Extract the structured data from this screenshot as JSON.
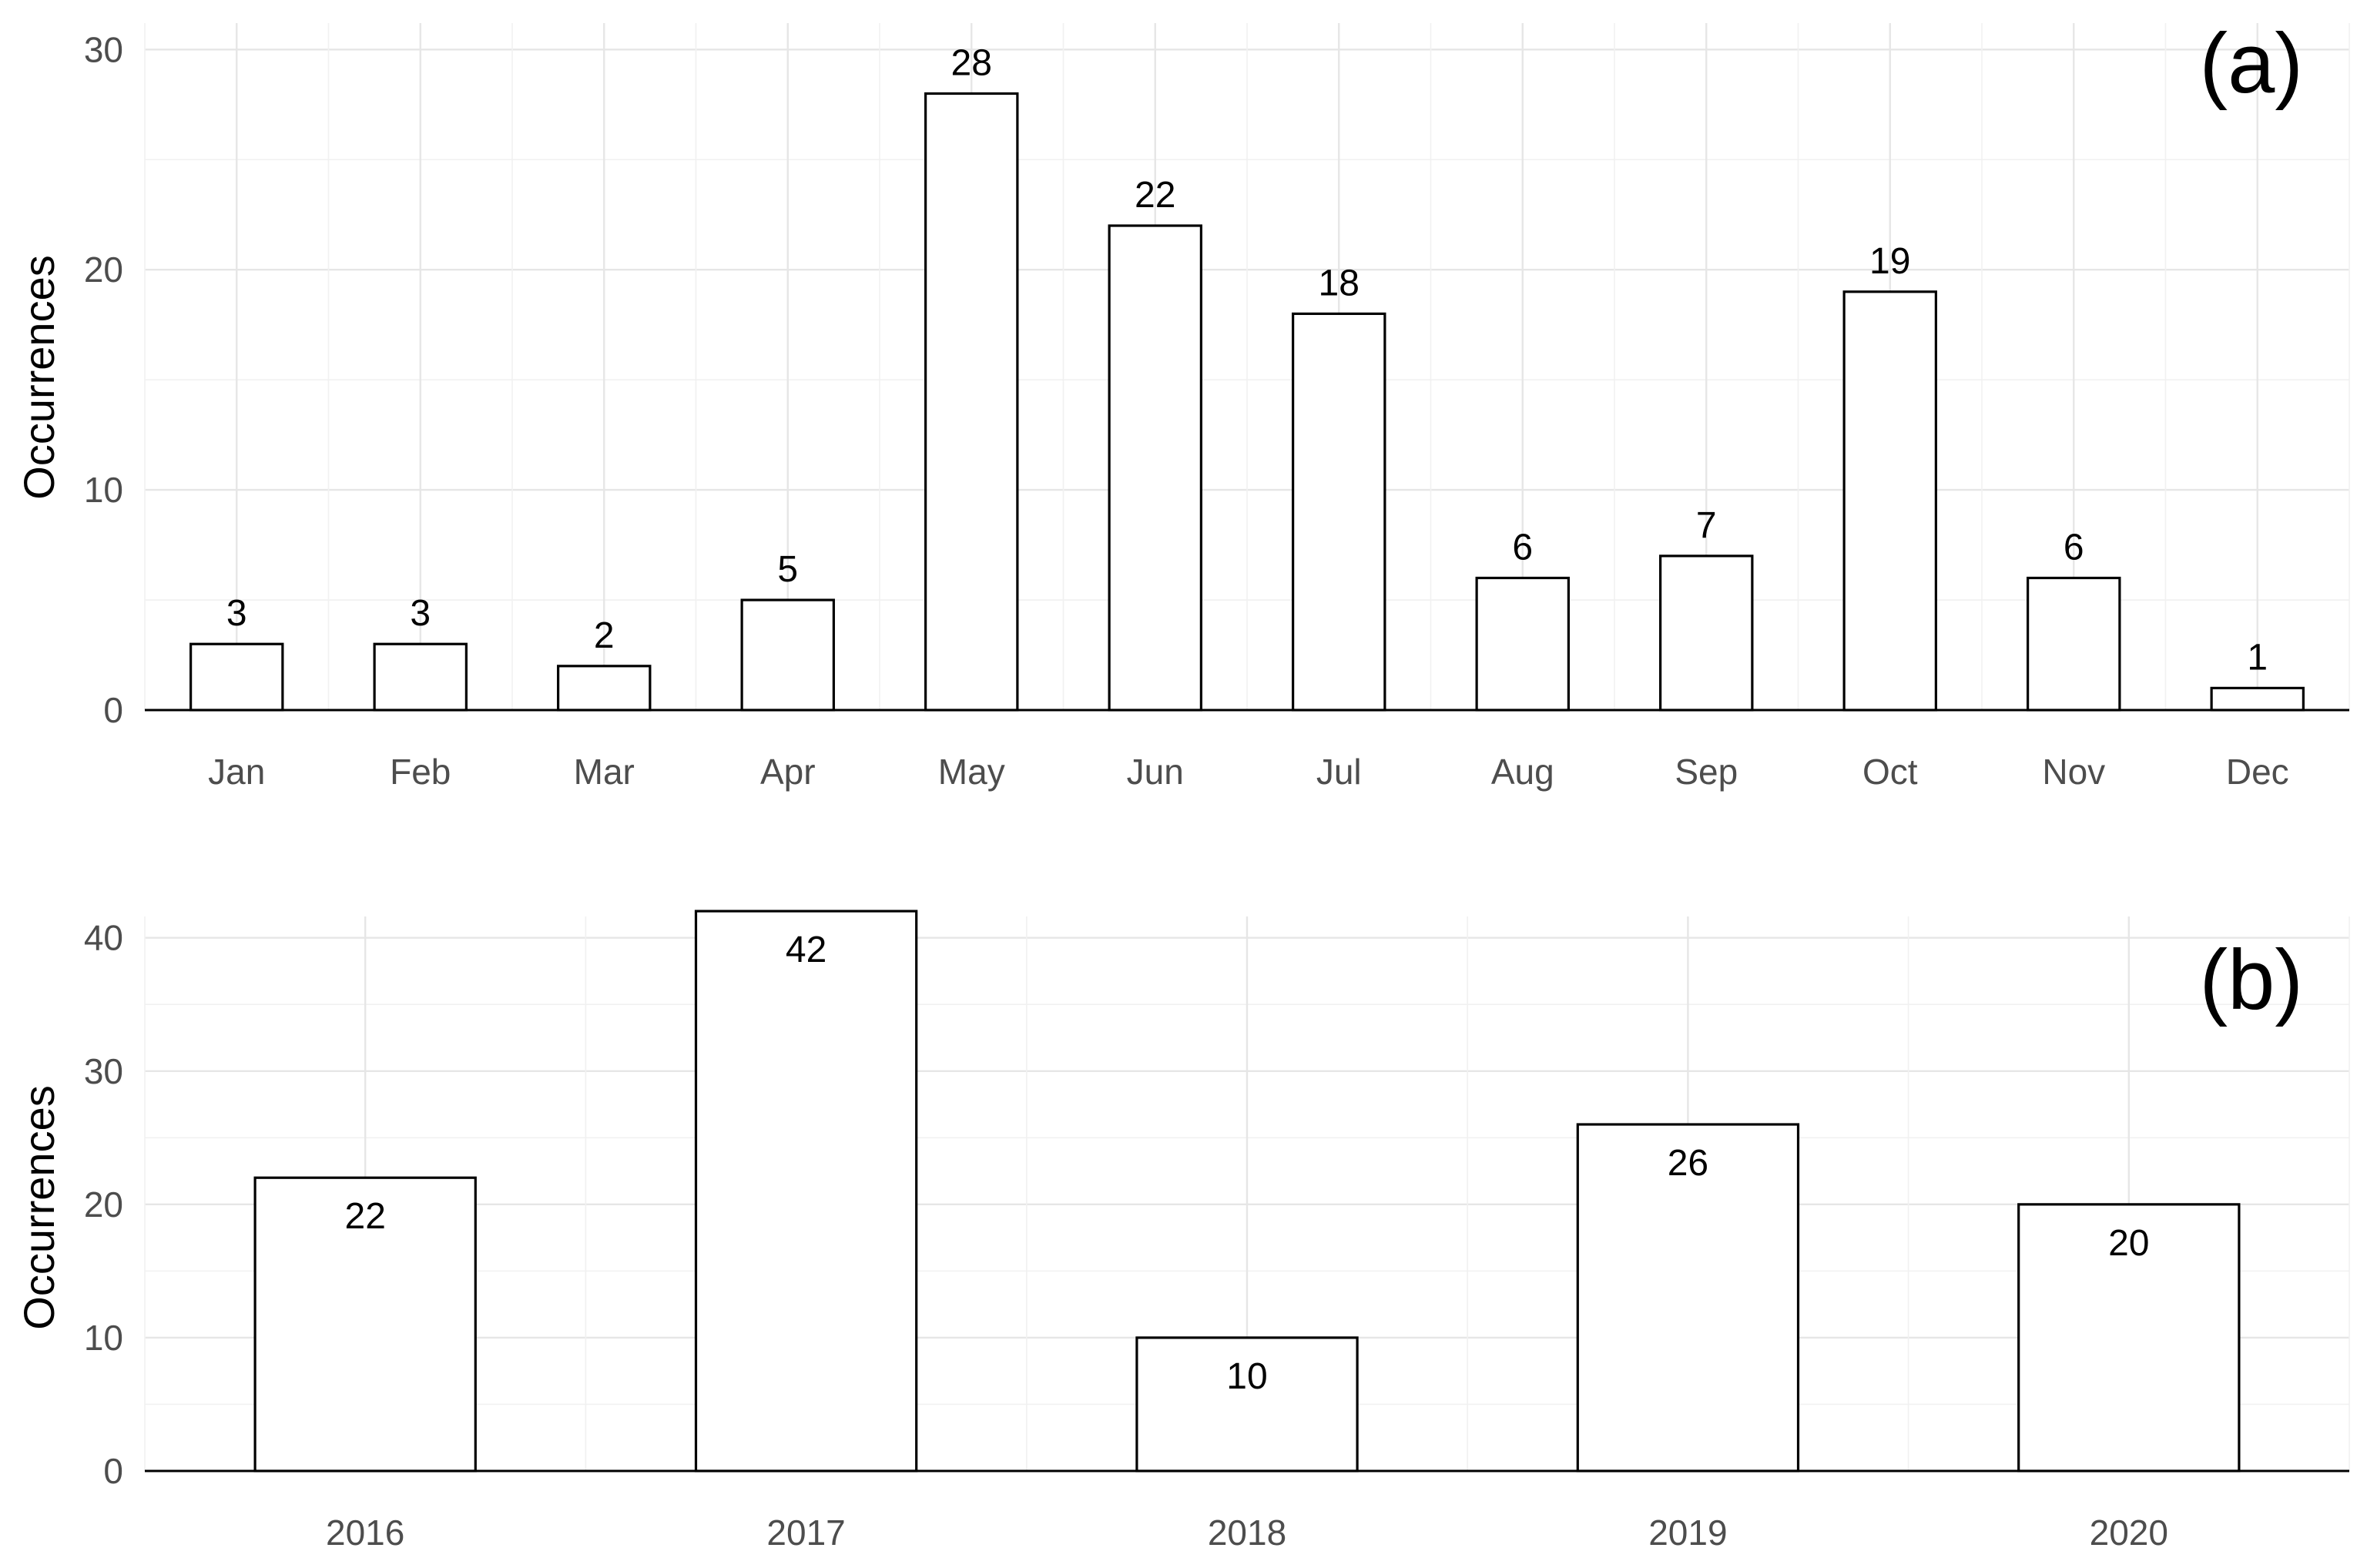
{
  "chart_data": [
    {
      "type": "bar",
      "panel_label": "(a)",
      "ylabel": "Occurrences",
      "xlabel": "",
      "ylim": [
        0,
        30
      ],
      "yticks": [
        0,
        10,
        20,
        30
      ],
      "categories": [
        "Jan",
        "Feb",
        "Mar",
        "Apr",
        "May",
        "Jun",
        "Jul",
        "Aug",
        "Sep",
        "Oct",
        "Nov",
        "Dec"
      ],
      "values": [
        3,
        3,
        2,
        5,
        28,
        22,
        18,
        6,
        7,
        19,
        6,
        1
      ],
      "value_labels": "above",
      "grid": true,
      "colors": {
        "bar_fill": "#ffffff",
        "bar_stroke": "#000000",
        "grid": "#e6e6e6"
      }
    },
    {
      "type": "bar",
      "panel_label": "(b)",
      "ylabel": "Occurrences",
      "xlabel": "",
      "ylim": [
        0,
        40
      ],
      "yticks": [
        0,
        10,
        20,
        30,
        40
      ],
      "categories": [
        "2016",
        "2017",
        "2018",
        "2019",
        "2020"
      ],
      "values": [
        22,
        42,
        10,
        26,
        20
      ],
      "value_labels": "inside-top",
      "grid": true,
      "colors": {
        "bar_fill": "#ffffff",
        "bar_stroke": "#000000",
        "grid": "#e6e6e6"
      }
    }
  ]
}
